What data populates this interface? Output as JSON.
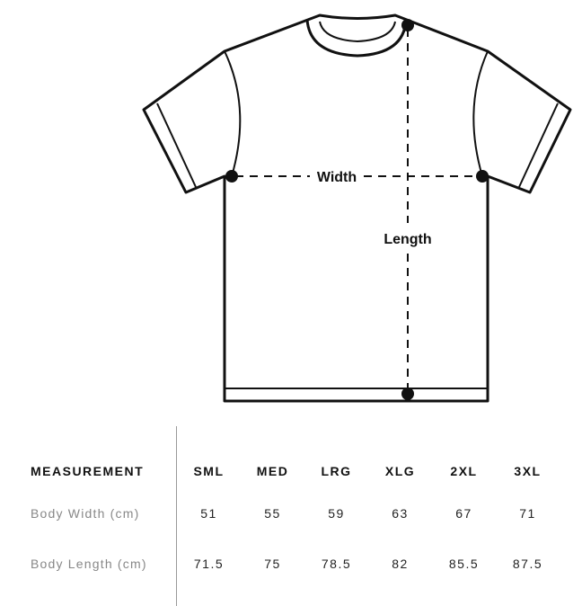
{
  "diagram": {
    "width_label": "Width",
    "length_label": "Length"
  },
  "table": {
    "header": "MEASUREMENT",
    "sizes": [
      "SML",
      "MED",
      "LRG",
      "XLG",
      "2XL",
      "3XL"
    ],
    "rows": [
      {
        "label": "Body Width (cm)",
        "values": [
          "51",
          "55",
          "59",
          "63",
          "67",
          "71"
        ]
      },
      {
        "label": "Body Length (cm)",
        "values": [
          "71.5",
          "75",
          "78.5",
          "82",
          "85.5",
          "87.5"
        ]
      }
    ]
  }
}
